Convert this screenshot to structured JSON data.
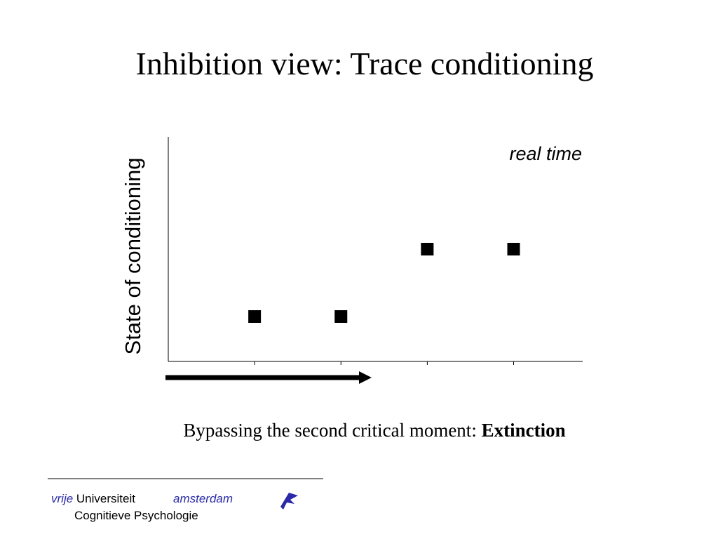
{
  "title": "Inhibition view: Trace conditioning",
  "chart_data": {
    "type": "scatter",
    "ylabel": "State of conditioning",
    "annotation": "real time",
    "x": [
      1,
      2,
      3,
      4
    ],
    "values": [
      0.2,
      0.2,
      0.5,
      0.5
    ],
    "color": "#000000",
    "marker": "square",
    "xlim": [
      0,
      4.8
    ],
    "ylim": [
      0,
      1
    ],
    "xticks": [
      1,
      2,
      3,
      4
    ]
  },
  "caption": {
    "text": "Bypassing the second critical moment:",
    "emphasis": "Extinction"
  },
  "footer": {
    "vrije": "vrije",
    "universiteit": "Universiteit",
    "amsterdam": "amsterdam",
    "department": "Cognitieve Psychologie"
  }
}
